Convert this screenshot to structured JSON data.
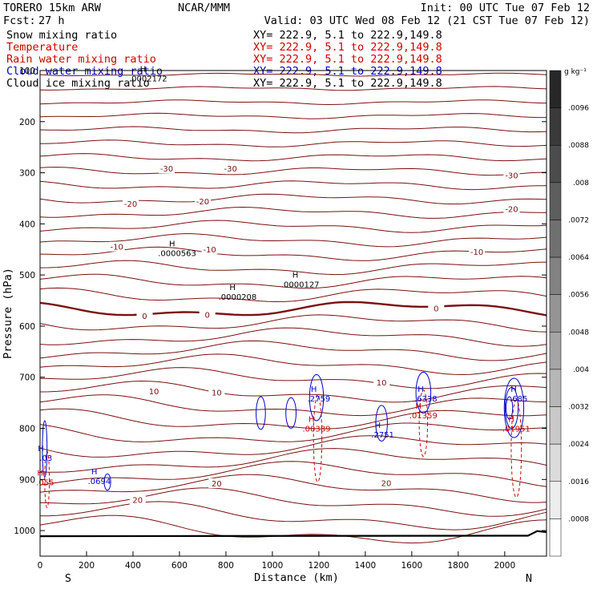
{
  "header": {
    "model": "TORERO  15km ARW",
    "center": "NCAR/MMM",
    "init": "Init: 00 UTC Tue 07 Feb 12",
    "fcst_label": "Fcst:",
    "fcst_value": "27 h",
    "valid": "Valid: 03 UTC Wed 08 Feb 12 (21 CST Tue 07 Feb 12)"
  },
  "legend": [
    {
      "name": "Snow mixing ratio",
      "color": "#000000",
      "coords": "XY= 222.9,  5.1 to 222.9,149.8"
    },
    {
      "name": "Temperature",
      "color": "#cc0000",
      "coords": "XY= 222.9,  5.1 to 222.9,149.8"
    },
    {
      "name": "Rain water mixing ratio",
      "color": "#cc0000",
      "coords": "XY= 222.9,  5.1 to 222.9,149.8"
    },
    {
      "name": "Cloud water mixing ratio",
      "color": "#0000cc",
      "coords": "XY= 222.9,  5.1 to 222.9,149.8"
    },
    {
      "name": "Cloud ice mixing ratio",
      "color": "#000000",
      "coords": "XY= 222.9,  5.1 to 222.9,149.8"
    }
  ],
  "chart_data": {
    "type": "contour-cross-section",
    "xlabel": "Distance (km)",
    "ylabel": "Pressure (hPa)",
    "xlim": [
      0,
      2180
    ],
    "ylim": [
      1050,
      100
    ],
    "x_ticks": [
      0,
      200,
      400,
      600,
      800,
      1000,
      1200,
      1400,
      1600,
      1800,
      2000
    ],
    "y_ticks": [
      100,
      200,
      300,
      400,
      500,
      600,
      700,
      800,
      900,
      1000
    ],
    "x_end_labels": {
      "left": "S",
      "right": "N"
    },
    "temperature_labels": [
      {
        "text": "-30",
        "x": 545,
        "p": 293
      },
      {
        "text": "-30",
        "x": 820,
        "p": 293
      },
      {
        "text": "-30",
        "x": 2030,
        "p": 306
      },
      {
        "text": "-20",
        "x": 390,
        "p": 362
      },
      {
        "text": "-20",
        "x": 700,
        "p": 357
      },
      {
        "text": "-20",
        "x": 2030,
        "p": 372
      },
      {
        "text": "-10",
        "x": 330,
        "p": 446
      },
      {
        "text": "-10",
        "x": 730,
        "p": 451
      },
      {
        "text": "-10",
        "x": 1880,
        "p": 456
      },
      {
        "text": "0",
        "x": 450,
        "p": 581
      },
      {
        "text": "0",
        "x": 720,
        "p": 579
      },
      {
        "text": "0",
        "x": 1705,
        "p": 566
      },
      {
        "text": "10",
        "x": 490,
        "p": 729
      },
      {
        "text": "10",
        "x": 760,
        "p": 731
      },
      {
        "text": "10",
        "x": 1470,
        "p": 711
      },
      {
        "text": "20",
        "x": 760,
        "p": 909
      },
      {
        "text": "20",
        "x": 1490,
        "p": 908
      },
      {
        "text": "20",
        "x": 420,
        "p": 941
      }
    ],
    "maxima": [
      {
        "text": ".0000563",
        "x": 590,
        "p": 457,
        "color": "#000000"
      },
      {
        "text": ".0000208",
        "x": 850,
        "p": 542,
        "color": "#000000"
      },
      {
        "text": ".0000127",
        "x": 1120,
        "p": 518,
        "color": "#000000"
      },
      {
        "text": ".0002172",
        "x": 465,
        "p": 115,
        "color": "#000000"
      },
      {
        "text": ".2759",
        "x": 1200,
        "p": 741,
        "color": "#0000cc"
      },
      {
        "text": ".2751",
        "x": 1475,
        "p": 812,
        "color": "#0000cc"
      },
      {
        "text": ".6338",
        "x": 1660,
        "p": 741,
        "color": "#0000cc"
      },
      {
        "text": ".685",
        "x": 2060,
        "p": 741,
        "color": "#0000cc"
      },
      {
        "text": ".0694",
        "x": 255,
        "p": 903,
        "color": "#0000cc"
      },
      {
        "text": ".03",
        "x": 25,
        "p": 857,
        "color": "#0000cc"
      },
      {
        "text": ".00389",
        "x": 1190,
        "p": 800,
        "color": "#cc0000"
      },
      {
        "text": ".01359",
        "x": 1650,
        "p": 774,
        "color": "#cc0000"
      },
      {
        "text": ".01951",
        "x": 2050,
        "p": 800,
        "color": "#cc0000"
      },
      {
        "text": ".055",
        "x": 22,
        "p": 905,
        "color": "#cc0000"
      }
    ],
    "colorbar": {
      "unit": "g kg⁻¹",
      "labels": [
        ".0096",
        ".0088",
        ".008",
        ".0072",
        ".0064",
        ".0056",
        ".0048",
        ".004",
        ".0032",
        ".0024",
        ".0016",
        ".0008"
      ]
    }
  }
}
